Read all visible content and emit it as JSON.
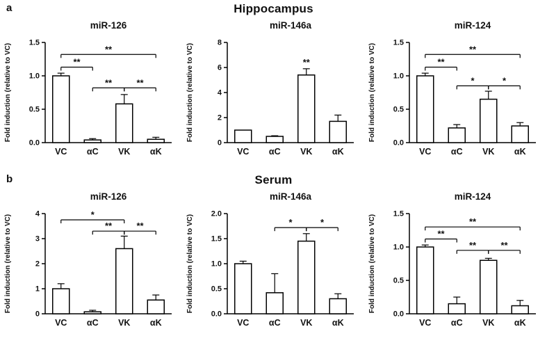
{
  "panels": [
    {
      "label": "a",
      "title": "Hippocampus"
    },
    {
      "label": "b",
      "title": "Serum"
    }
  ],
  "chart_data": [
    {
      "type": "bar",
      "panel": "a",
      "title": "miR-126",
      "ylabel": "Fold induction (relative to VC)",
      "categories": [
        "VC",
        "αC",
        "VK",
        "αK"
      ],
      "values": [
        1.0,
        0.04,
        0.58,
        0.05
      ],
      "errors": [
        0.04,
        0.02,
        0.14,
        0.03
      ],
      "ylim": [
        0,
        1.5
      ],
      "yticks": [
        0.0,
        0.5,
        1.0,
        1.5
      ],
      "ytick_labels": [
        "0.0",
        "0.5",
        "1.0",
        "1.5"
      ],
      "brackets": [
        {
          "from": 0,
          "to": 3,
          "y": 1.32,
          "label": "**"
        },
        {
          "from": 0,
          "to": 1,
          "y": 1.13,
          "label": "**"
        },
        {
          "from": 1,
          "to": 2,
          "y": 0.82,
          "label": "**"
        },
        {
          "from": 2,
          "to": 3,
          "y": 0.82,
          "label": "**"
        }
      ],
      "annotations": []
    },
    {
      "type": "bar",
      "panel": "a",
      "title": "miR-146a",
      "ylabel": "Fold induction (relative to VC)",
      "categories": [
        "VC",
        "αC",
        "VK",
        "αK"
      ],
      "values": [
        1.0,
        0.5,
        5.4,
        1.7
      ],
      "errors": [
        0,
        0.05,
        0.5,
        0.5
      ],
      "ylim": [
        0,
        8
      ],
      "yticks": [
        0,
        2,
        4,
        6,
        8
      ],
      "ytick_labels": [
        "0",
        "2",
        "4",
        "6",
        "8"
      ],
      "brackets": [],
      "annotations": [
        {
          "category": "VK",
          "label": "**"
        }
      ]
    },
    {
      "type": "bar",
      "panel": "a",
      "title": "miR-124",
      "ylabel": "Fold induction (relative to VC)",
      "categories": [
        "VC",
        "αC",
        "VK",
        "αK"
      ],
      "values": [
        1.0,
        0.22,
        0.65,
        0.25
      ],
      "errors": [
        0.04,
        0.05,
        0.12,
        0.05
      ],
      "ylim": [
        0,
        1.5
      ],
      "yticks": [
        0.0,
        0.5,
        1.0,
        1.5
      ],
      "ytick_labels": [
        "0.0",
        "0.5",
        "1.0",
        "1.5"
      ],
      "brackets": [
        {
          "from": 0,
          "to": 3,
          "y": 1.32,
          "label": "**"
        },
        {
          "from": 0,
          "to": 1,
          "y": 1.13,
          "label": "**"
        },
        {
          "from": 1,
          "to": 2,
          "y": 0.85,
          "label": "*"
        },
        {
          "from": 2,
          "to": 3,
          "y": 0.85,
          "label": "*"
        }
      ],
      "annotations": []
    },
    {
      "type": "bar",
      "panel": "b",
      "title": "miR-126",
      "ylabel": "Fold induction (relative to VC)",
      "categories": [
        "VC",
        "αC",
        "VK",
        "αK"
      ],
      "values": [
        1.0,
        0.08,
        2.6,
        0.55
      ],
      "errors": [
        0.2,
        0.06,
        0.5,
        0.2
      ],
      "ylim": [
        0,
        4
      ],
      "yticks": [
        0,
        1,
        2,
        3,
        4
      ],
      "ytick_labels": [
        "0",
        "1",
        "2",
        "3",
        "4"
      ],
      "brackets": [
        {
          "from": 0,
          "to": 2,
          "y": 3.75,
          "label": "*"
        },
        {
          "from": 1,
          "to": 2,
          "y": 3.3,
          "label": "**"
        },
        {
          "from": 2,
          "to": 3,
          "y": 3.3,
          "label": "**"
        }
      ],
      "annotations": []
    },
    {
      "type": "bar",
      "panel": "b",
      "title": "miR-146a",
      "ylabel": "Fold induction (relative to VC)",
      "categories": [
        "VC",
        "αC",
        "VK",
        "αK"
      ],
      "values": [
        1.0,
        0.42,
        1.45,
        0.3
      ],
      "errors": [
        0.05,
        0.38,
        0.15,
        0.1
      ],
      "ylim": [
        0,
        2
      ],
      "yticks": [
        0.0,
        0.5,
        1.0,
        1.5,
        2.0
      ],
      "ytick_labels": [
        "0.0",
        "0.5",
        "1.0",
        "1.5",
        "2.0"
      ],
      "brackets": [
        {
          "from": 1,
          "to": 2,
          "y": 1.72,
          "label": "*"
        },
        {
          "from": 2,
          "to": 3,
          "y": 1.72,
          "label": "*"
        }
      ],
      "annotations": []
    },
    {
      "type": "bar",
      "panel": "b",
      "title": "miR-124",
      "ylabel": "Fold induction (relative to VC)",
      "categories": [
        "VC",
        "αC",
        "VK",
        "αK"
      ],
      "values": [
        1.0,
        0.15,
        0.8,
        0.12
      ],
      "errors": [
        0.03,
        0.1,
        0.03,
        0.08
      ],
      "ylim": [
        0,
        1.5
      ],
      "yticks": [
        0.0,
        0.5,
        1.0,
        1.5
      ],
      "ytick_labels": [
        "0.0",
        "0.5",
        "1.0",
        "1.5"
      ],
      "brackets": [
        {
          "from": 0,
          "to": 3,
          "y": 1.3,
          "label": "**"
        },
        {
          "from": 0,
          "to": 1,
          "y": 1.12,
          "label": "**"
        },
        {
          "from": 1,
          "to": 2,
          "y": 0.95,
          "label": "**"
        },
        {
          "from": 2,
          "to": 3,
          "y": 0.95,
          "label": "**"
        }
      ],
      "annotations": []
    }
  ]
}
